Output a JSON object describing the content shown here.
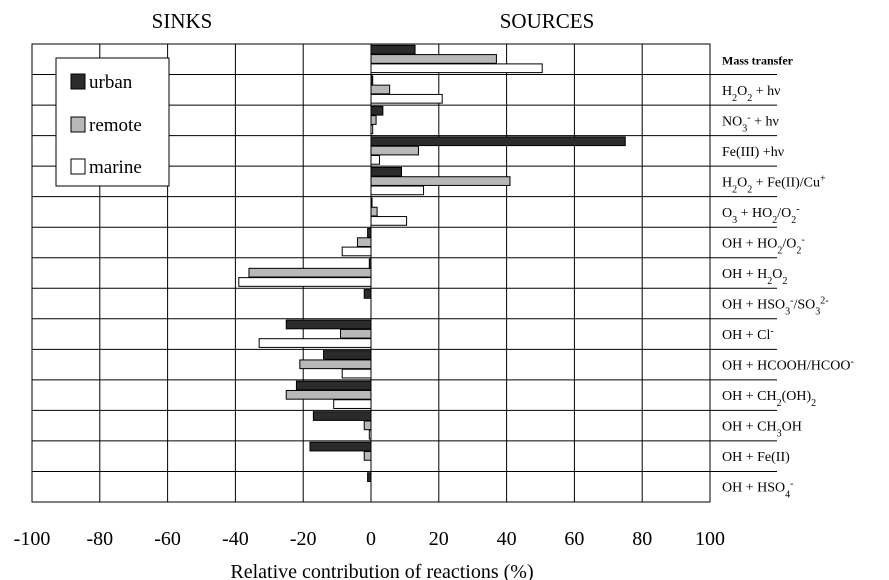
{
  "header": {
    "left_label": "SINKS",
    "right_label": "SOURCES"
  },
  "colors": {
    "urban": "#2b2b2b",
    "remote": "#b8b8b8",
    "marine": "#ffffff",
    "border": "#000000"
  },
  "chart_data": {
    "type": "bar",
    "orientation": "horizontal",
    "xlabel": "Relative contribution of reactions (%)",
    "xlim": [
      -100,
      100
    ],
    "xticks": [
      "-100",
      "-80",
      "-60",
      "-40",
      "-20",
      "0",
      "20",
      "40",
      "60",
      "80",
      "100"
    ],
    "grid": true,
    "legend_position": "top-left",
    "categories": [
      {
        "base": "Mass transfer",
        "parts": [
          {
            "t": "Mass transfer",
            "s": "n",
            "b": true
          }
        ]
      },
      {
        "base": "H2O2 + hv",
        "parts": [
          {
            "t": "H",
            "s": "n"
          },
          {
            "t": "2",
            "s": "sub"
          },
          {
            "t": "O",
            "s": "n"
          },
          {
            "t": "2",
            "s": "sub"
          },
          {
            "t": " + hν",
            "s": "n"
          }
        ]
      },
      {
        "base": "NO3- + hv",
        "parts": [
          {
            "t": "NO",
            "s": "n"
          },
          {
            "t": "3",
            "s": "sub"
          },
          {
            "t": "-",
            "s": "sup"
          },
          {
            "t": " + hν",
            "s": "n"
          }
        ]
      },
      {
        "base": "Fe(III) +hv",
        "parts": [
          {
            "t": "Fe(III) +hν",
            "s": "n"
          }
        ]
      },
      {
        "base": "H2O2 + Fe(II)/Cu+",
        "parts": [
          {
            "t": "H",
            "s": "n"
          },
          {
            "t": "2",
            "s": "sub"
          },
          {
            "t": "O",
            "s": "n"
          },
          {
            "t": "2",
            "s": "sub"
          },
          {
            "t": " + Fe(II)/Cu",
            "s": "n"
          },
          {
            "t": "+",
            "s": "sup"
          }
        ]
      },
      {
        "base": "O3 + HO2/O2-",
        "parts": [
          {
            "t": "O",
            "s": "n"
          },
          {
            "t": "3",
            "s": "sub"
          },
          {
            "t": " +  HO",
            "s": "n"
          },
          {
            "t": "2",
            "s": "sub"
          },
          {
            "t": "/O",
            "s": "n"
          },
          {
            "t": "2",
            "s": "sub"
          },
          {
            "t": "-",
            "s": "sup"
          }
        ]
      },
      {
        "base": "OH + HO2/O2-",
        "parts": [
          {
            "t": "OH + HO",
            "s": "n"
          },
          {
            "t": "2",
            "s": "sub"
          },
          {
            "t": "/O",
            "s": "n"
          },
          {
            "t": "2",
            "s": "sub"
          },
          {
            "t": "-",
            "s": "sup"
          }
        ]
      },
      {
        "base": "OH + H2O2",
        "parts": [
          {
            "t": "OH + H",
            "s": "n"
          },
          {
            "t": "2",
            "s": "sub"
          },
          {
            "t": "O",
            "s": "n"
          },
          {
            "t": "2",
            "s": "sub"
          }
        ]
      },
      {
        "base": "OH + HSO3-/SO32-",
        "parts": [
          {
            "t": "OH + HSO",
            "s": "n"
          },
          {
            "t": "3",
            "s": "sub"
          },
          {
            "t": "-",
            "s": "sup"
          },
          {
            "t": "/SO",
            "s": "n"
          },
          {
            "t": "3",
            "s": "sub"
          },
          {
            "t": "2-",
            "s": "sup"
          }
        ]
      },
      {
        "base": "OH + Cl-",
        "parts": [
          {
            "t": "OH + Cl",
            "s": "n"
          },
          {
            "t": "-",
            "s": "sup"
          }
        ]
      },
      {
        "base": "OH + HCOOH/HCOO-",
        "parts": [
          {
            "t": "OH + HCOOH/HCOO",
            "s": "n"
          },
          {
            "t": "-",
            "s": "sup"
          }
        ]
      },
      {
        "base": "OH + CH2(OH)2",
        "parts": [
          {
            "t": "OH + CH",
            "s": "n"
          },
          {
            "t": "2",
            "s": "sub"
          },
          {
            "t": "(OH)",
            "s": "n"
          },
          {
            "t": "2",
            "s": "sub"
          }
        ]
      },
      {
        "base": "OH + CH3OH",
        "parts": [
          {
            "t": "OH + CH",
            "s": "n"
          },
          {
            "t": "3",
            "s": "sub"
          },
          {
            "t": "OH",
            "s": "n"
          }
        ]
      },
      {
        "base": "OH + Fe(II)",
        "parts": [
          {
            "t": "OH + Fe(II)",
            "s": "n"
          }
        ]
      },
      {
        "base": "OH + HSO4-",
        "parts": [
          {
            "t": "OH + HSO",
            "s": "n"
          },
          {
            "t": "4",
            "s": "sub"
          },
          {
            "t": "-",
            "s": "sup"
          }
        ]
      }
    ],
    "series": [
      {
        "name": "urban",
        "color": "#2b2b2b",
        "values": [
          13,
          0.5,
          3.5,
          75,
          9,
          0.3,
          -1,
          -0.5,
          -2,
          -25,
          -14,
          -22,
          -17,
          -18,
          -1
        ]
      },
      {
        "name": "remote",
        "color": "#b8b8b8",
        "values": [
          37,
          5.5,
          1.5,
          14,
          41,
          1.8,
          -4,
          -36,
          0,
          -9,
          -21,
          -25,
          -2,
          -2,
          0
        ]
      },
      {
        "name": "marine",
        "color": "#ffffff",
        "values": [
          50.5,
          21,
          0.5,
          2.5,
          15.5,
          10.5,
          -8.5,
          -39,
          0,
          -33,
          -8.5,
          -11,
          -0.5,
          0,
          0
        ]
      }
    ]
  }
}
